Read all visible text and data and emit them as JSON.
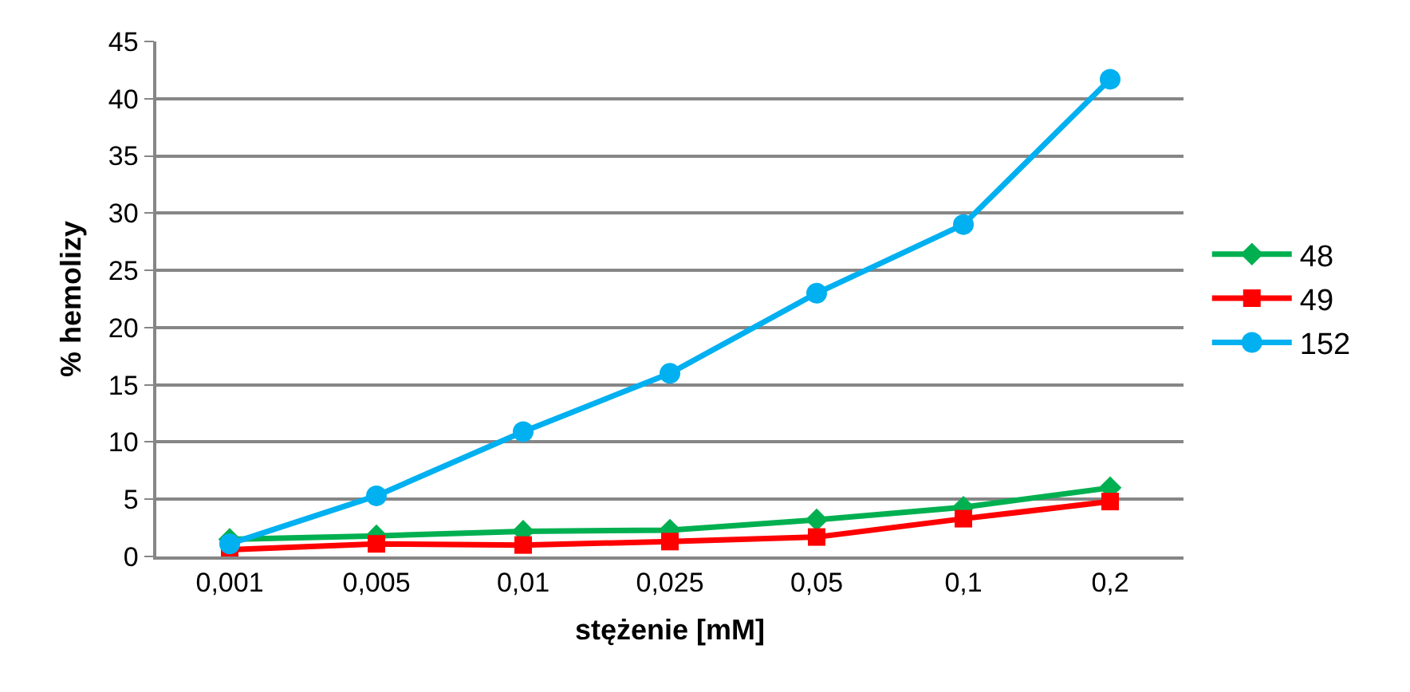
{
  "chart_data": {
    "type": "line",
    "xlabel": "stężenie [mM]",
    "ylabel": "% hemolizy",
    "categories": [
      "0,001",
      "0,005",
      "0,01",
      "0,025",
      "0,05",
      "0,1",
      "0,2"
    ],
    "series": [
      {
        "name": "48",
        "color": "#00b050",
        "marker": "diamond",
        "values": [
          1.5,
          1.8,
          2.2,
          2.3,
          3.2,
          4.3,
          6.0
        ]
      },
      {
        "name": "49",
        "color": "#ff0000",
        "marker": "square",
        "values": [
          0.6,
          1.1,
          1.0,
          1.3,
          1.7,
          3.3,
          4.8
        ]
      },
      {
        "name": "152",
        "color": "#00b0f0",
        "marker": "circle",
        "values": [
          1.1,
          5.3,
          10.9,
          16.0,
          23.0,
          29.0,
          41.7
        ]
      }
    ],
    "ylim": [
      0,
      45
    ],
    "yticks": [
      0,
      5,
      10,
      15,
      20,
      25,
      30,
      35,
      40,
      45
    ],
    "grid": "y",
    "legend": "right",
    "line_style": "solid"
  }
}
